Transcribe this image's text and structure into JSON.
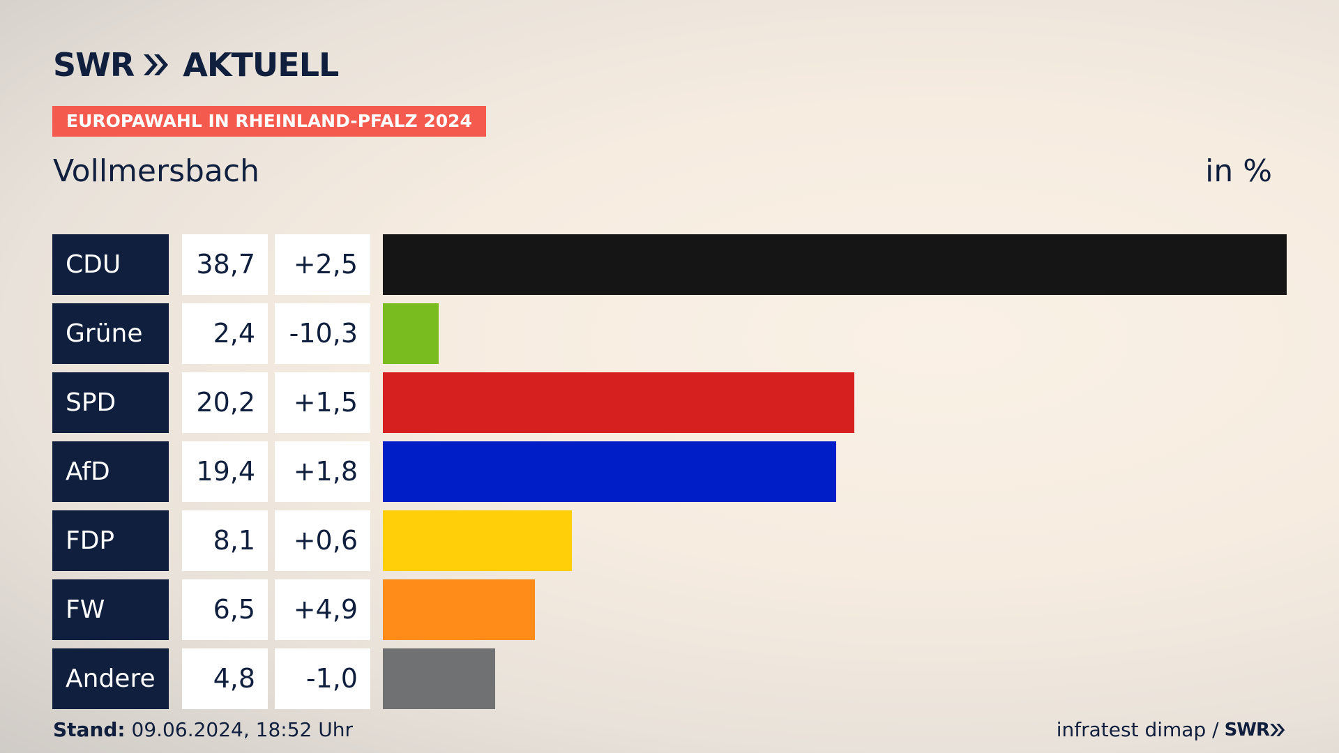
{
  "header": {
    "logo_left": "SWR",
    "logo_right": "AKTUELL",
    "badge": "EUROPAWAHL IN RHEINLAND-PFALZ 2024",
    "subtitle": "Vollmersbach",
    "unit": "in %"
  },
  "footer": {
    "stand_label": "Stand:",
    "stand_value": "09.06.2024, 18:52 Uhr",
    "source": "infratest dimap /",
    "source_logo": "SWR"
  },
  "chart_data": {
    "type": "bar",
    "categories": [
      "CDU",
      "Grüne",
      "SPD",
      "AfD",
      "FDP",
      "FW",
      "Andere"
    ],
    "values": [
      38.7,
      2.4,
      20.2,
      19.4,
      8.1,
      6.5,
      4.8
    ],
    "values_label": [
      "38,7",
      "2,4",
      "20,2",
      "19,4",
      "8,1",
      "6,5",
      "4,8"
    ],
    "diff_label": [
      "+2,5",
      "-10,3",
      "+1,5",
      "+1,8",
      "+0,6",
      "+4,9",
      "-1,0"
    ],
    "colors": [
      "#151515",
      "#78bc1f",
      "#d6201f",
      "#001ec8",
      "#ffcf0a",
      "#ff8c19",
      "#707172"
    ],
    "ylim": [
      0,
      38.7
    ]
  }
}
